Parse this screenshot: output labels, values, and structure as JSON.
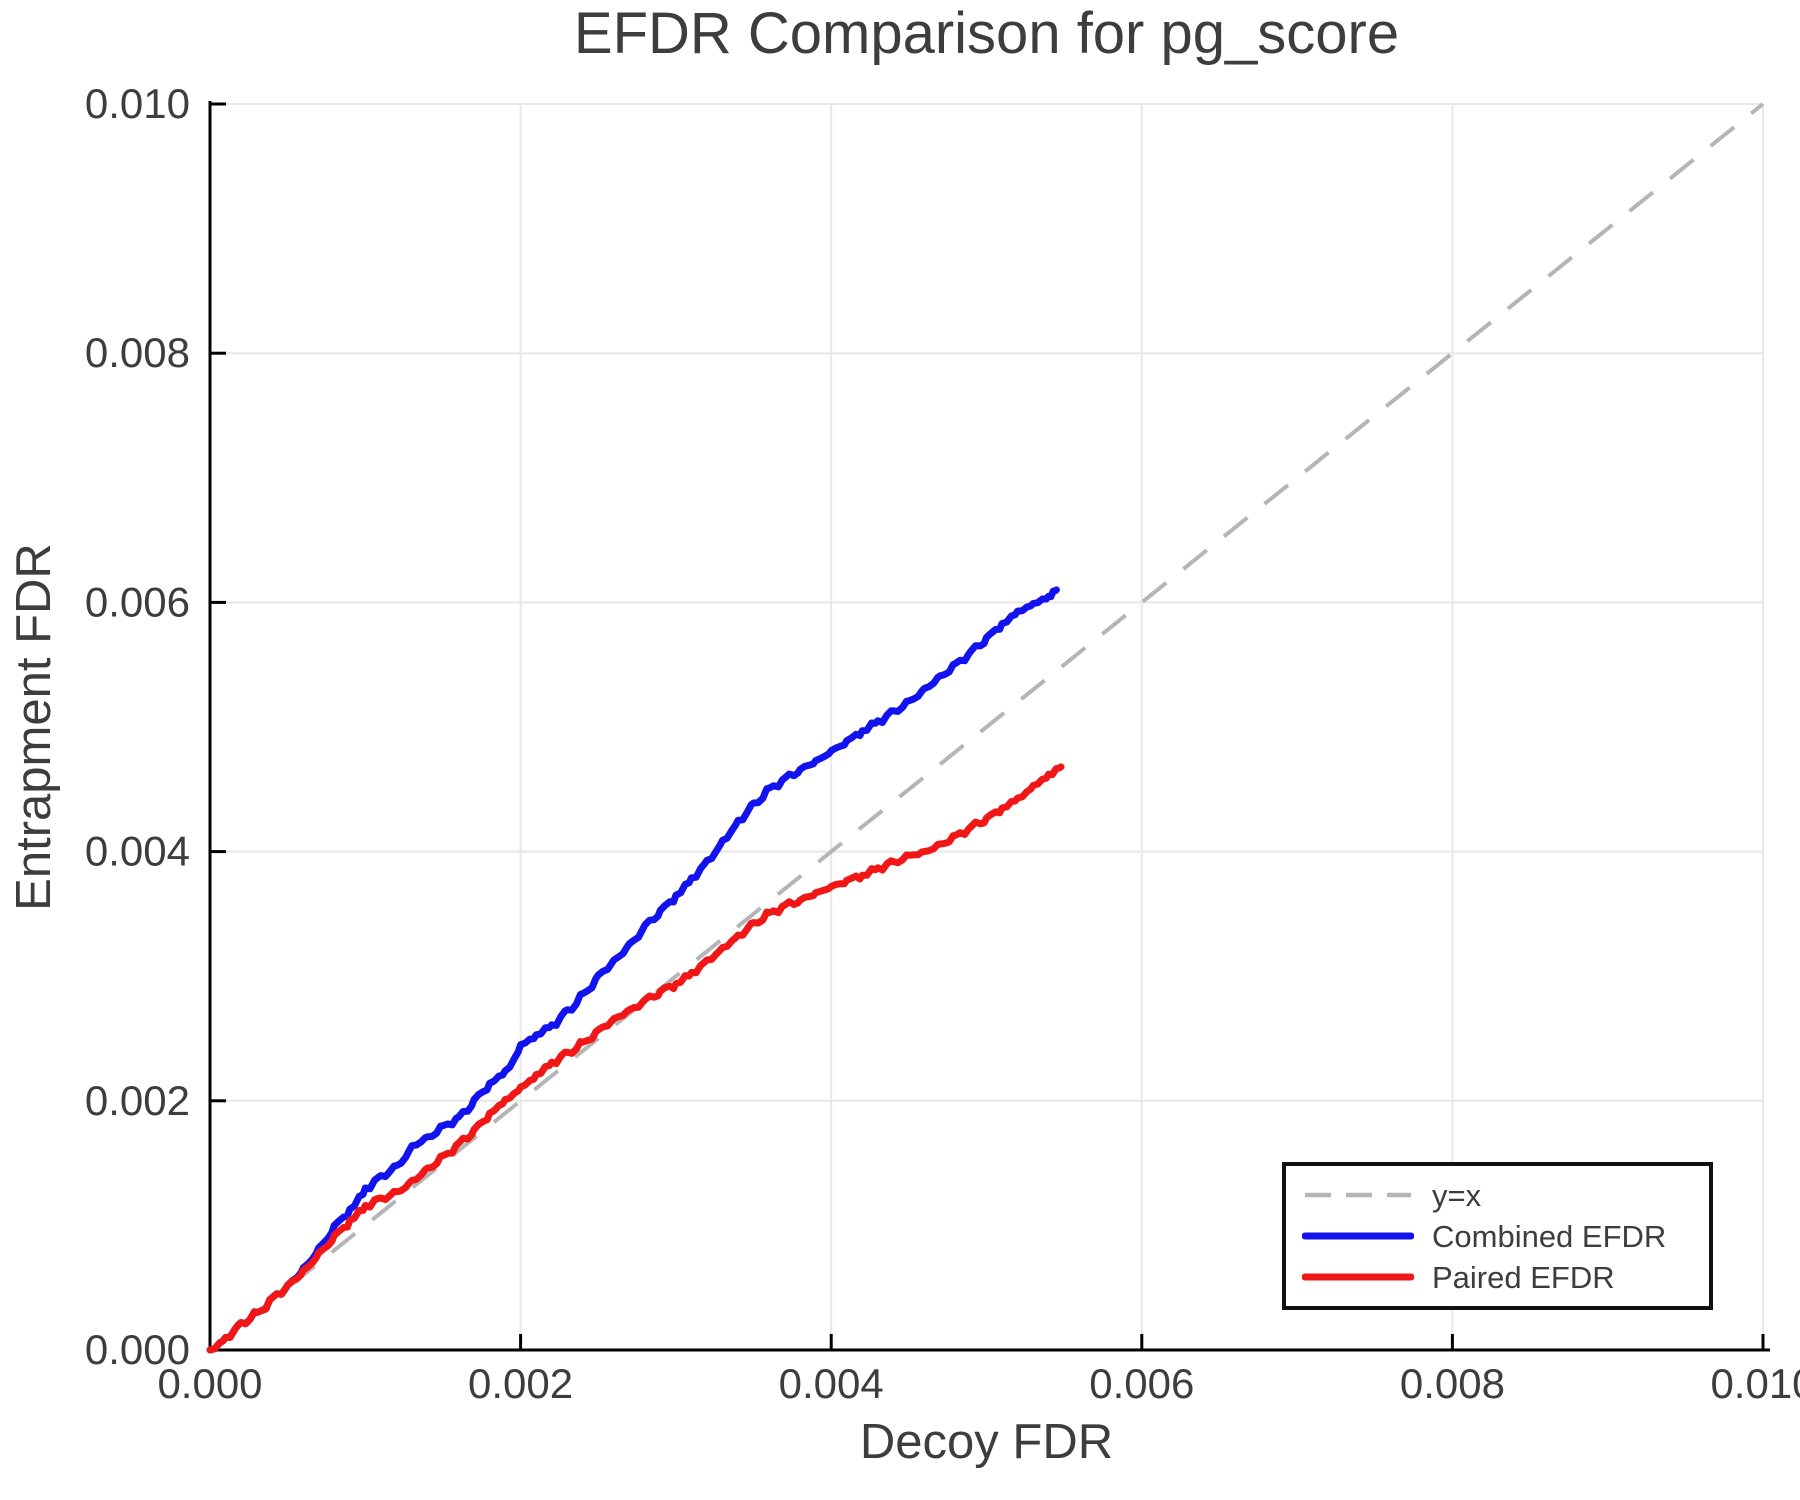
{
  "chart_data": {
    "type": "line",
    "title": "EFDR Comparison for pg_score",
    "xlabel": "Decoy FDR",
    "ylabel": "Entrapment FDR",
    "xlim": [
      0.0,
      0.01
    ],
    "ylim": [
      0.0,
      0.01
    ],
    "grid": true,
    "legend_position": "bottom-right",
    "background": "#ffffff",
    "grid_color": "#e8e8e8",
    "axis_color": "#000000",
    "text_color": "#3d3d3d",
    "xticks": {
      "values": [
        0.0,
        0.002,
        0.004,
        0.006,
        0.008,
        0.01
      ],
      "labels": [
        "0.000",
        "0.002",
        "0.004",
        "0.006",
        "0.008",
        "0.010"
      ]
    },
    "yticks": {
      "values": [
        0.0,
        0.002,
        0.004,
        0.006,
        0.008,
        0.01
      ],
      "labels": [
        "0.000",
        "0.002",
        "0.004",
        "0.006",
        "0.008",
        "0.010"
      ]
    },
    "series": [
      {
        "name": "y=x",
        "style": "dashed",
        "color": "#b5b5b5",
        "points": [
          [
            0.0,
            0.0
          ],
          [
            0.01,
            0.01
          ]
        ]
      },
      {
        "name": "Combined EFDR",
        "style": "solid",
        "color": "#1313f0",
        "points": [
          [
            0.0,
            0.0
          ],
          [
            0.0001,
            0.0001
          ],
          [
            0.0002,
            0.00022
          ],
          [
            0.0003,
            0.0003
          ],
          [
            0.0004,
            0.00042
          ],
          [
            0.0005,
            0.00052
          ],
          [
            0.0006,
            0.00066
          ],
          [
            0.0007,
            0.00082
          ],
          [
            0.0008,
            0.001
          ],
          [
            0.0009,
            0.00113
          ],
          [
            0.001,
            0.0013
          ],
          [
            0.0011,
            0.0014
          ],
          [
            0.0012,
            0.00148
          ],
          [
            0.0013,
            0.00164
          ],
          [
            0.0014,
            0.00171
          ],
          [
            0.0015,
            0.0018
          ],
          [
            0.0016,
            0.00187
          ],
          [
            0.0017,
            0.00201
          ],
          [
            0.0018,
            0.00214
          ],
          [
            0.0019,
            0.00224
          ],
          [
            0.002,
            0.00245
          ],
          [
            0.0021,
            0.00253
          ],
          [
            0.0022,
            0.00261
          ],
          [
            0.0023,
            0.00273
          ],
          [
            0.0024,
            0.00286
          ],
          [
            0.0025,
            0.00301
          ],
          [
            0.0026,
            0.00313
          ],
          [
            0.0027,
            0.00326
          ],
          [
            0.0028,
            0.00341
          ],
          [
            0.0029,
            0.00353
          ],
          [
            0.003,
            0.00365
          ],
          [
            0.0031,
            0.00379
          ],
          [
            0.0032,
            0.00393
          ],
          [
            0.0033,
            0.00409
          ],
          [
            0.0034,
            0.00425
          ],
          [
            0.0035,
            0.00439
          ],
          [
            0.0036,
            0.00451
          ],
          [
            0.0037,
            0.00459
          ],
          [
            0.0038,
            0.00466
          ],
          [
            0.0039,
            0.00473
          ],
          [
            0.004,
            0.00481
          ],
          [
            0.0041,
            0.00489
          ],
          [
            0.0042,
            0.00497
          ],
          [
            0.0043,
            0.00505
          ],
          [
            0.0044,
            0.00513
          ],
          [
            0.0045,
            0.00521
          ],
          [
            0.0046,
            0.00531
          ],
          [
            0.0047,
            0.00541
          ],
          [
            0.0048,
            0.00551
          ],
          [
            0.0049,
            0.00561
          ],
          [
            0.005,
            0.00572
          ],
          [
            0.0051,
            0.00583
          ],
          [
            0.0052,
            0.00593
          ],
          [
            0.0053,
            0.00599
          ],
          [
            0.0054,
            0.00605
          ],
          [
            0.00545,
            0.0061
          ]
        ]
      },
      {
        "name": "Paired EFDR",
        "style": "solid",
        "color": "#f21717",
        "points": [
          [
            0.0,
            0.0
          ],
          [
            0.0001,
            0.0001
          ],
          [
            0.0002,
            0.00022
          ],
          [
            0.0003,
            0.0003
          ],
          [
            0.0004,
            0.00042
          ],
          [
            0.0005,
            0.00052
          ],
          [
            0.0006,
            0.00064
          ],
          [
            0.0007,
            0.00078
          ],
          [
            0.0008,
            0.00092
          ],
          [
            0.0009,
            0.00104
          ],
          [
            0.001,
            0.00116
          ],
          [
            0.0011,
            0.00122
          ],
          [
            0.0012,
            0.00127
          ],
          [
            0.0013,
            0.00136
          ],
          [
            0.0014,
            0.00146
          ],
          [
            0.0015,
            0.00156
          ],
          [
            0.0016,
            0.00166
          ],
          [
            0.0017,
            0.00177
          ],
          [
            0.0018,
            0.0019
          ],
          [
            0.0019,
            0.00201
          ],
          [
            0.002,
            0.00211
          ],
          [
            0.0021,
            0.00221
          ],
          [
            0.0022,
            0.00231
          ],
          [
            0.0023,
            0.00239
          ],
          [
            0.0024,
            0.00247
          ],
          [
            0.0025,
            0.00257
          ],
          [
            0.0026,
            0.00266
          ],
          [
            0.0027,
            0.00273
          ],
          [
            0.0028,
            0.00281
          ],
          [
            0.0029,
            0.00288
          ],
          [
            0.003,
            0.00294
          ],
          [
            0.0031,
            0.00303
          ],
          [
            0.0032,
            0.00313
          ],
          [
            0.0033,
            0.00323
          ],
          [
            0.0034,
            0.00333
          ],
          [
            0.0035,
            0.00343
          ],
          [
            0.0036,
            0.00351
          ],
          [
            0.0037,
            0.00357
          ],
          [
            0.0038,
            0.00361
          ],
          [
            0.0039,
            0.00367
          ],
          [
            0.004,
            0.00372
          ],
          [
            0.0041,
            0.00377
          ],
          [
            0.0042,
            0.00381
          ],
          [
            0.0043,
            0.00387
          ],
          [
            0.0044,
            0.00392
          ],
          [
            0.0045,
            0.00397
          ],
          [
            0.0046,
            0.004
          ],
          [
            0.0047,
            0.00406
          ],
          [
            0.0048,
            0.00413
          ],
          [
            0.0049,
            0.0042
          ],
          [
            0.005,
            0.00427
          ],
          [
            0.0051,
            0.00435
          ],
          [
            0.0052,
            0.00443
          ],
          [
            0.0053,
            0.00453
          ],
          [
            0.0054,
            0.00462
          ],
          [
            0.00548,
            0.00468
          ]
        ]
      }
    ]
  }
}
